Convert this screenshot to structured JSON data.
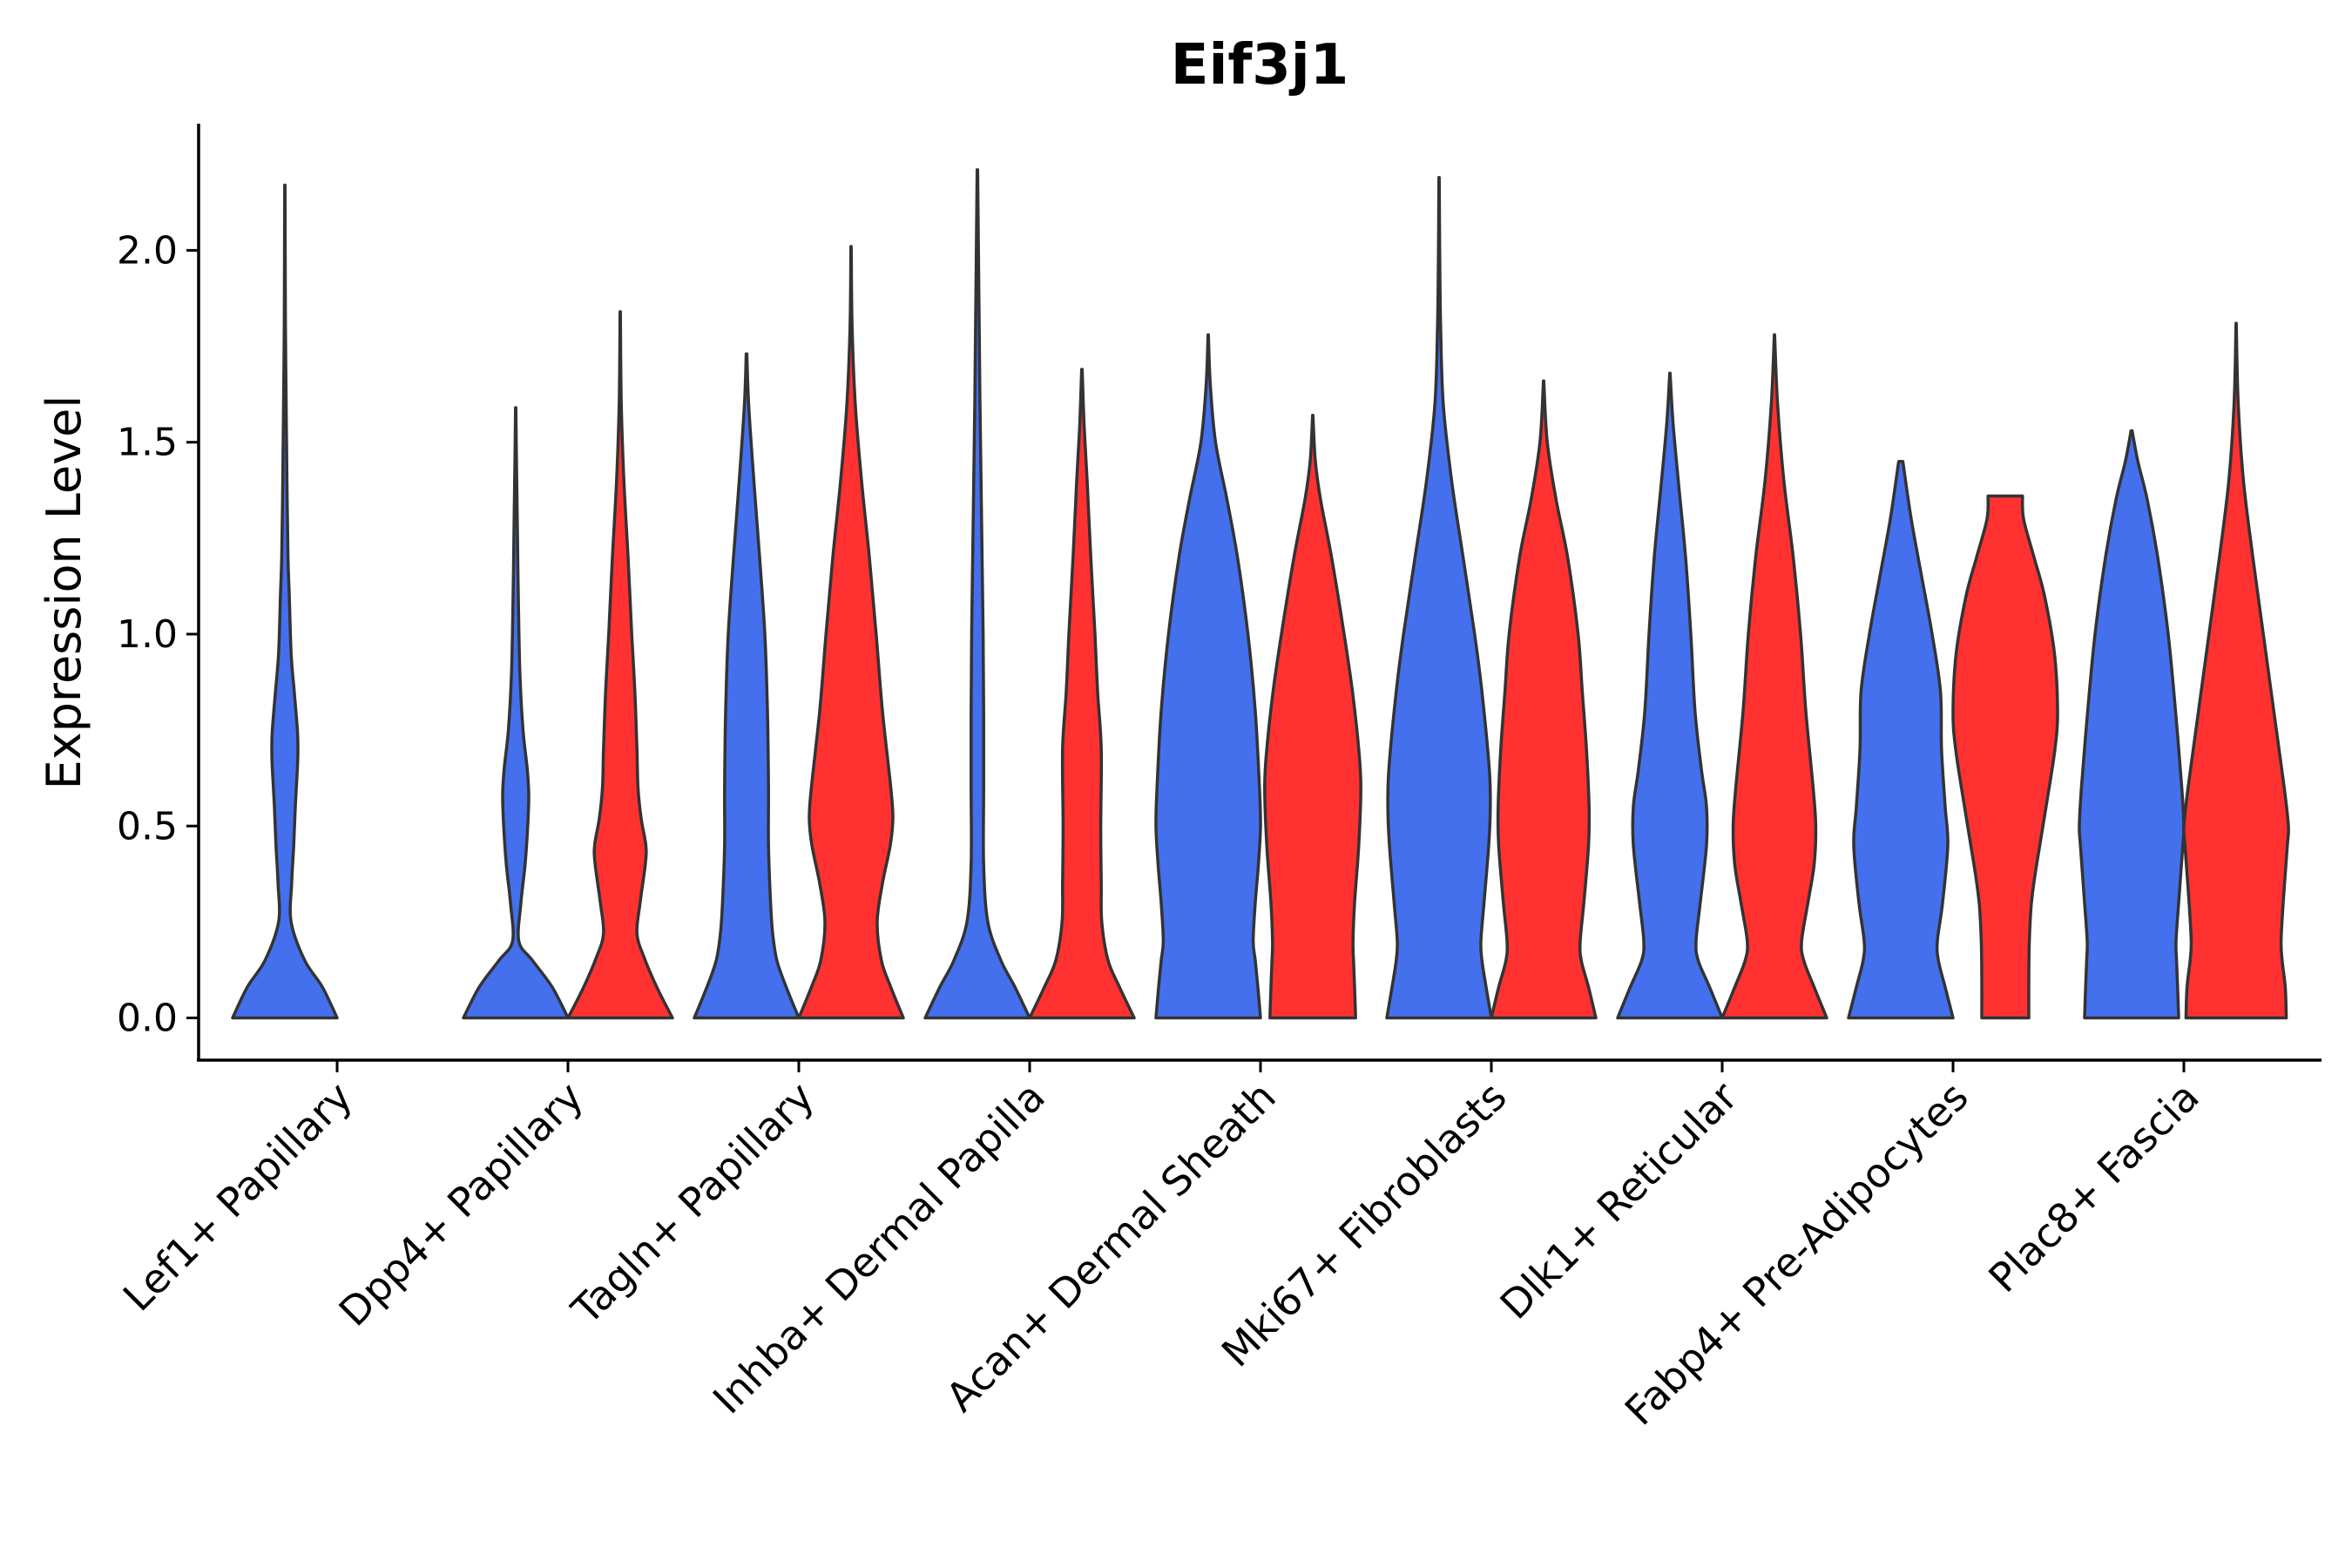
{
  "chart_data": {
    "type": "violin",
    "title": "Eif3j1",
    "xlabel": "",
    "ylabel": "Expression Level",
    "ylim": [
      -0.11,
      2.33
    ],
    "yticks": [
      0.0,
      0.5,
      1.0,
      1.5,
      2.0
    ],
    "ytick_labels": [
      "0.0",
      "0.5",
      "1.0",
      "1.5",
      "2.0"
    ],
    "grid": false,
    "legend": "none",
    "series_colors": {
      "left": "#4470ee",
      "right": "#ff3131"
    },
    "categories": [
      "Lef1+ Papillary",
      "Dpp4+ Papillary",
      "Tagln+ Papillary",
      "Inhba+ Dermal Papilla",
      "Acan+ Dermal Sheath",
      "Mki67+ Fibroblasts",
      "Dlk1+ Reticular",
      "Fabp4+ Pre-Adipocytes",
      "Plac8+ Fascia"
    ],
    "violins": [
      {
        "category": "Lef1+ Papillary",
        "side": "left",
        "max": 2.17,
        "profile": [
          [
            0,
            1.0
          ],
          [
            0.08,
            0.72
          ],
          [
            0.15,
            0.38
          ],
          [
            0.25,
            0.12
          ],
          [
            0.35,
            0.13
          ],
          [
            0.45,
            0.17
          ],
          [
            0.55,
            0.2
          ],
          [
            0.65,
            0.24
          ],
          [
            0.7,
            0.25
          ],
          [
            0.75,
            0.24
          ],
          [
            0.85,
            0.18
          ],
          [
            0.95,
            0.12
          ],
          [
            1.1,
            0.085
          ],
          [
            1.2,
            0.06
          ],
          [
            1.4,
            0.04
          ],
          [
            1.6,
            0.025
          ],
          [
            1.8,
            0.012
          ],
          [
            2.0,
            0.006
          ],
          [
            2.17,
            0.003
          ]
        ]
      },
      {
        "category": "Dpp4+ Papillary",
        "side": "left",
        "max": 1.59,
        "profile": [
          [
            0,
            1.0
          ],
          [
            0.08,
            0.7
          ],
          [
            0.15,
            0.32
          ],
          [
            0.2,
            0.06
          ],
          [
            0.3,
            0.1
          ],
          [
            0.4,
            0.18
          ],
          [
            0.5,
            0.23
          ],
          [
            0.58,
            0.25
          ],
          [
            0.65,
            0.22
          ],
          [
            0.75,
            0.14
          ],
          [
            0.9,
            0.08
          ],
          [
            1.1,
            0.05
          ],
          [
            1.3,
            0.03
          ],
          [
            1.45,
            0.015
          ],
          [
            1.59,
            0.004
          ]
        ]
      },
      {
        "category": "Dpp4+ Papillary",
        "side": "right",
        "max": 1.84,
        "profile": [
          [
            0,
            1.0
          ],
          [
            0.08,
            0.7
          ],
          [
            0.16,
            0.45
          ],
          [
            0.22,
            0.32
          ],
          [
            0.3,
            0.38
          ],
          [
            0.4,
            0.48
          ],
          [
            0.45,
            0.49
          ],
          [
            0.52,
            0.4
          ],
          [
            0.6,
            0.34
          ],
          [
            0.7,
            0.32
          ],
          [
            0.85,
            0.28
          ],
          [
            1.0,
            0.22
          ],
          [
            1.2,
            0.15
          ],
          [
            1.4,
            0.07
          ],
          [
            1.6,
            0.02
          ],
          [
            1.84,
            0.004
          ]
        ]
      },
      {
        "category": "Tagln+ Papillary",
        "side": "left",
        "max": 1.73,
        "profile": [
          [
            0,
            1.0
          ],
          [
            0.08,
            0.76
          ],
          [
            0.15,
            0.58
          ],
          [
            0.22,
            0.5
          ],
          [
            0.3,
            0.46
          ],
          [
            0.45,
            0.42
          ],
          [
            0.6,
            0.42
          ],
          [
            0.8,
            0.4
          ],
          [
            1.0,
            0.35
          ],
          [
            1.2,
            0.25
          ],
          [
            1.4,
            0.14
          ],
          [
            1.6,
            0.04
          ],
          [
            1.73,
            0.006
          ]
        ]
      },
      {
        "category": "Tagln+ Papillary",
        "side": "right",
        "max": 2.01,
        "profile": [
          [
            0,
            1.0
          ],
          [
            0.08,
            0.76
          ],
          [
            0.15,
            0.58
          ],
          [
            0.25,
            0.5
          ],
          [
            0.35,
            0.6
          ],
          [
            0.45,
            0.75
          ],
          [
            0.52,
            0.8
          ],
          [
            0.6,
            0.76
          ],
          [
            0.8,
            0.6
          ],
          [
            1.0,
            0.48
          ],
          [
            1.2,
            0.35
          ],
          [
            1.4,
            0.2
          ],
          [
            1.6,
            0.08
          ],
          [
            1.8,
            0.02
          ],
          [
            2.01,
            0.004
          ]
        ]
      },
      {
        "category": "Inhba+ Dermal Papilla",
        "side": "left",
        "max": 2.21,
        "profile": [
          [
            0,
            1.0
          ],
          [
            0.08,
            0.72
          ],
          [
            0.15,
            0.45
          ],
          [
            0.25,
            0.2
          ],
          [
            0.4,
            0.12
          ],
          [
            0.6,
            0.12
          ],
          [
            0.8,
            0.12
          ],
          [
            1.0,
            0.11
          ],
          [
            1.2,
            0.09
          ],
          [
            1.4,
            0.07
          ],
          [
            1.6,
            0.05
          ],
          [
            1.8,
            0.035
          ],
          [
            2.0,
            0.02
          ],
          [
            2.21,
            0.005
          ]
        ]
      },
      {
        "category": "Inhba+ Dermal Papilla",
        "side": "right",
        "max": 1.69,
        "profile": [
          [
            0,
            1.0
          ],
          [
            0.08,
            0.72
          ],
          [
            0.15,
            0.5
          ],
          [
            0.25,
            0.38
          ],
          [
            0.35,
            0.37
          ],
          [
            0.5,
            0.36
          ],
          [
            0.7,
            0.37
          ],
          [
            0.85,
            0.3
          ],
          [
            1.0,
            0.25
          ],
          [
            1.2,
            0.17
          ],
          [
            1.4,
            0.1
          ],
          [
            1.55,
            0.04
          ],
          [
            1.69,
            0.005
          ]
        ]
      },
      {
        "category": "Acan+ Dermal Sheath",
        "side": "left",
        "max": 1.78,
        "profile": [
          [
            0,
            1.0
          ],
          [
            0.08,
            0.95
          ],
          [
            0.15,
            0.9
          ],
          [
            0.2,
            0.86
          ],
          [
            0.3,
            0.9
          ],
          [
            0.4,
            0.96
          ],
          [
            0.5,
            1.0
          ],
          [
            0.6,
            0.98
          ],
          [
            0.8,
            0.9
          ],
          [
            1.0,
            0.76
          ],
          [
            1.2,
            0.56
          ],
          [
            1.35,
            0.36
          ],
          [
            1.5,
            0.14
          ],
          [
            1.65,
            0.04
          ],
          [
            1.78,
            0.004
          ]
        ]
      },
      {
        "category": "Acan+ Dermal Sheath",
        "side": "right",
        "max": 1.57,
        "profile": [
          [
            0,
            0.82
          ],
          [
            0.08,
            0.8
          ],
          [
            0.15,
            0.78
          ],
          [
            0.2,
            0.77
          ],
          [
            0.3,
            0.8
          ],
          [
            0.45,
            0.88
          ],
          [
            0.6,
            0.92
          ],
          [
            0.7,
            0.88
          ],
          [
            0.85,
            0.76
          ],
          [
            1.0,
            0.6
          ],
          [
            1.2,
            0.36
          ],
          [
            1.35,
            0.15
          ],
          [
            1.45,
            0.05
          ],
          [
            1.57,
            0.004
          ]
        ]
      },
      {
        "category": "Mki67+ Fibroblasts",
        "side": "left",
        "max": 2.19,
        "profile": [
          [
            0,
            1.0
          ],
          [
            0.08,
            0.9
          ],
          [
            0.15,
            0.82
          ],
          [
            0.2,
            0.8
          ],
          [
            0.3,
            0.86
          ],
          [
            0.45,
            0.95
          ],
          [
            0.55,
            0.98
          ],
          [
            0.65,
            0.96
          ],
          [
            0.85,
            0.82
          ],
          [
            1.0,
            0.68
          ],
          [
            1.2,
            0.46
          ],
          [
            1.4,
            0.24
          ],
          [
            1.6,
            0.08
          ],
          [
            1.8,
            0.03
          ],
          [
            2.0,
            0.012
          ],
          [
            2.19,
            0.004
          ]
        ]
      },
      {
        "category": "Mki67+ Fibroblasts",
        "side": "right",
        "max": 1.66,
        "profile": [
          [
            0,
            1.0
          ],
          [
            0.08,
            0.86
          ],
          [
            0.15,
            0.72
          ],
          [
            0.2,
            0.7
          ],
          [
            0.3,
            0.77
          ],
          [
            0.45,
            0.86
          ],
          [
            0.55,
            0.87
          ],
          [
            0.7,
            0.82
          ],
          [
            0.85,
            0.74
          ],
          [
            1.0,
            0.66
          ],
          [
            1.2,
            0.46
          ],
          [
            1.35,
            0.24
          ],
          [
            1.5,
            0.07
          ],
          [
            1.66,
            0.004
          ]
        ]
      },
      {
        "category": "Dlk1+ Reticular",
        "side": "left",
        "max": 1.68,
        "profile": [
          [
            0,
            1.0
          ],
          [
            0.08,
            0.76
          ],
          [
            0.15,
            0.54
          ],
          [
            0.2,
            0.5
          ],
          [
            0.3,
            0.58
          ],
          [
            0.45,
            0.7
          ],
          [
            0.55,
            0.7
          ],
          [
            0.65,
            0.6
          ],
          [
            0.8,
            0.48
          ],
          [
            1.0,
            0.4
          ],
          [
            1.2,
            0.3
          ],
          [
            1.4,
            0.16
          ],
          [
            1.55,
            0.06
          ],
          [
            1.68,
            0.004
          ]
        ]
      },
      {
        "category": "Dlk1+ Reticular",
        "side": "right",
        "max": 1.78,
        "profile": [
          [
            0,
            1.0
          ],
          [
            0.08,
            0.76
          ],
          [
            0.15,
            0.56
          ],
          [
            0.2,
            0.52
          ],
          [
            0.3,
            0.64
          ],
          [
            0.4,
            0.76
          ],
          [
            0.5,
            0.79
          ],
          [
            0.6,
            0.74
          ],
          [
            0.8,
            0.6
          ],
          [
            1.0,
            0.5
          ],
          [
            1.2,
            0.36
          ],
          [
            1.4,
            0.18
          ],
          [
            1.6,
            0.06
          ],
          [
            1.78,
            0.004
          ]
        ]
      },
      {
        "category": "Fabp4+ Pre-Adipocytes",
        "side": "left",
        "max": 1.45,
        "profile": [
          [
            0,
            1.0
          ],
          [
            0.08,
            0.85
          ],
          [
            0.15,
            0.72
          ],
          [
            0.2,
            0.7
          ],
          [
            0.3,
            0.8
          ],
          [
            0.45,
            0.9
          ],
          [
            0.55,
            0.85
          ],
          [
            0.7,
            0.78
          ],
          [
            0.85,
            0.76
          ],
          [
            1.0,
            0.6
          ],
          [
            1.15,
            0.4
          ],
          [
            1.3,
            0.2
          ],
          [
            1.45,
            0.04
          ]
        ]
      },
      {
        "category": "Fabp4+ Pre-Adipocytes",
        "side": "right",
        "max": 1.36,
        "profile": [
          [
            0,
            0.45
          ],
          [
            0.1,
            0.45
          ],
          [
            0.2,
            0.46
          ],
          [
            0.3,
            0.5
          ],
          [
            0.4,
            0.6
          ],
          [
            0.55,
            0.78
          ],
          [
            0.7,
            0.95
          ],
          [
            0.8,
            1.0
          ],
          [
            0.95,
            0.94
          ],
          [
            1.1,
            0.75
          ],
          [
            1.2,
            0.55
          ],
          [
            1.3,
            0.35
          ],
          [
            1.36,
            0.33
          ]
        ]
      },
      {
        "category": "Plac8+ Fascia",
        "side": "left",
        "max": 1.53,
        "profile": [
          [
            0,
            0.9
          ],
          [
            0.08,
            0.88
          ],
          [
            0.15,
            0.86
          ],
          [
            0.2,
            0.85
          ],
          [
            0.3,
            0.9
          ],
          [
            0.45,
            0.98
          ],
          [
            0.5,
            1.0
          ],
          [
            0.6,
            0.96
          ],
          [
            0.8,
            0.84
          ],
          [
            1.0,
            0.7
          ],
          [
            1.2,
            0.5
          ],
          [
            1.35,
            0.3
          ],
          [
            1.45,
            0.12
          ],
          [
            1.53,
            0.01
          ]
        ]
      },
      {
        "category": "Plac8+ Fascia",
        "side": "right",
        "max": 1.81,
        "profile": [
          [
            0,
            0.96
          ],
          [
            0.08,
            0.94
          ],
          [
            0.15,
            0.88
          ],
          [
            0.2,
            0.86
          ],
          [
            0.3,
            0.9
          ],
          [
            0.45,
            0.98
          ],
          [
            0.5,
            1.0
          ],
          [
            0.6,
            0.92
          ],
          [
            0.8,
            0.72
          ],
          [
            1.0,
            0.52
          ],
          [
            1.2,
            0.32
          ],
          [
            1.4,
            0.14
          ],
          [
            1.6,
            0.04
          ],
          [
            1.81,
            0.003
          ]
        ]
      }
    ]
  }
}
